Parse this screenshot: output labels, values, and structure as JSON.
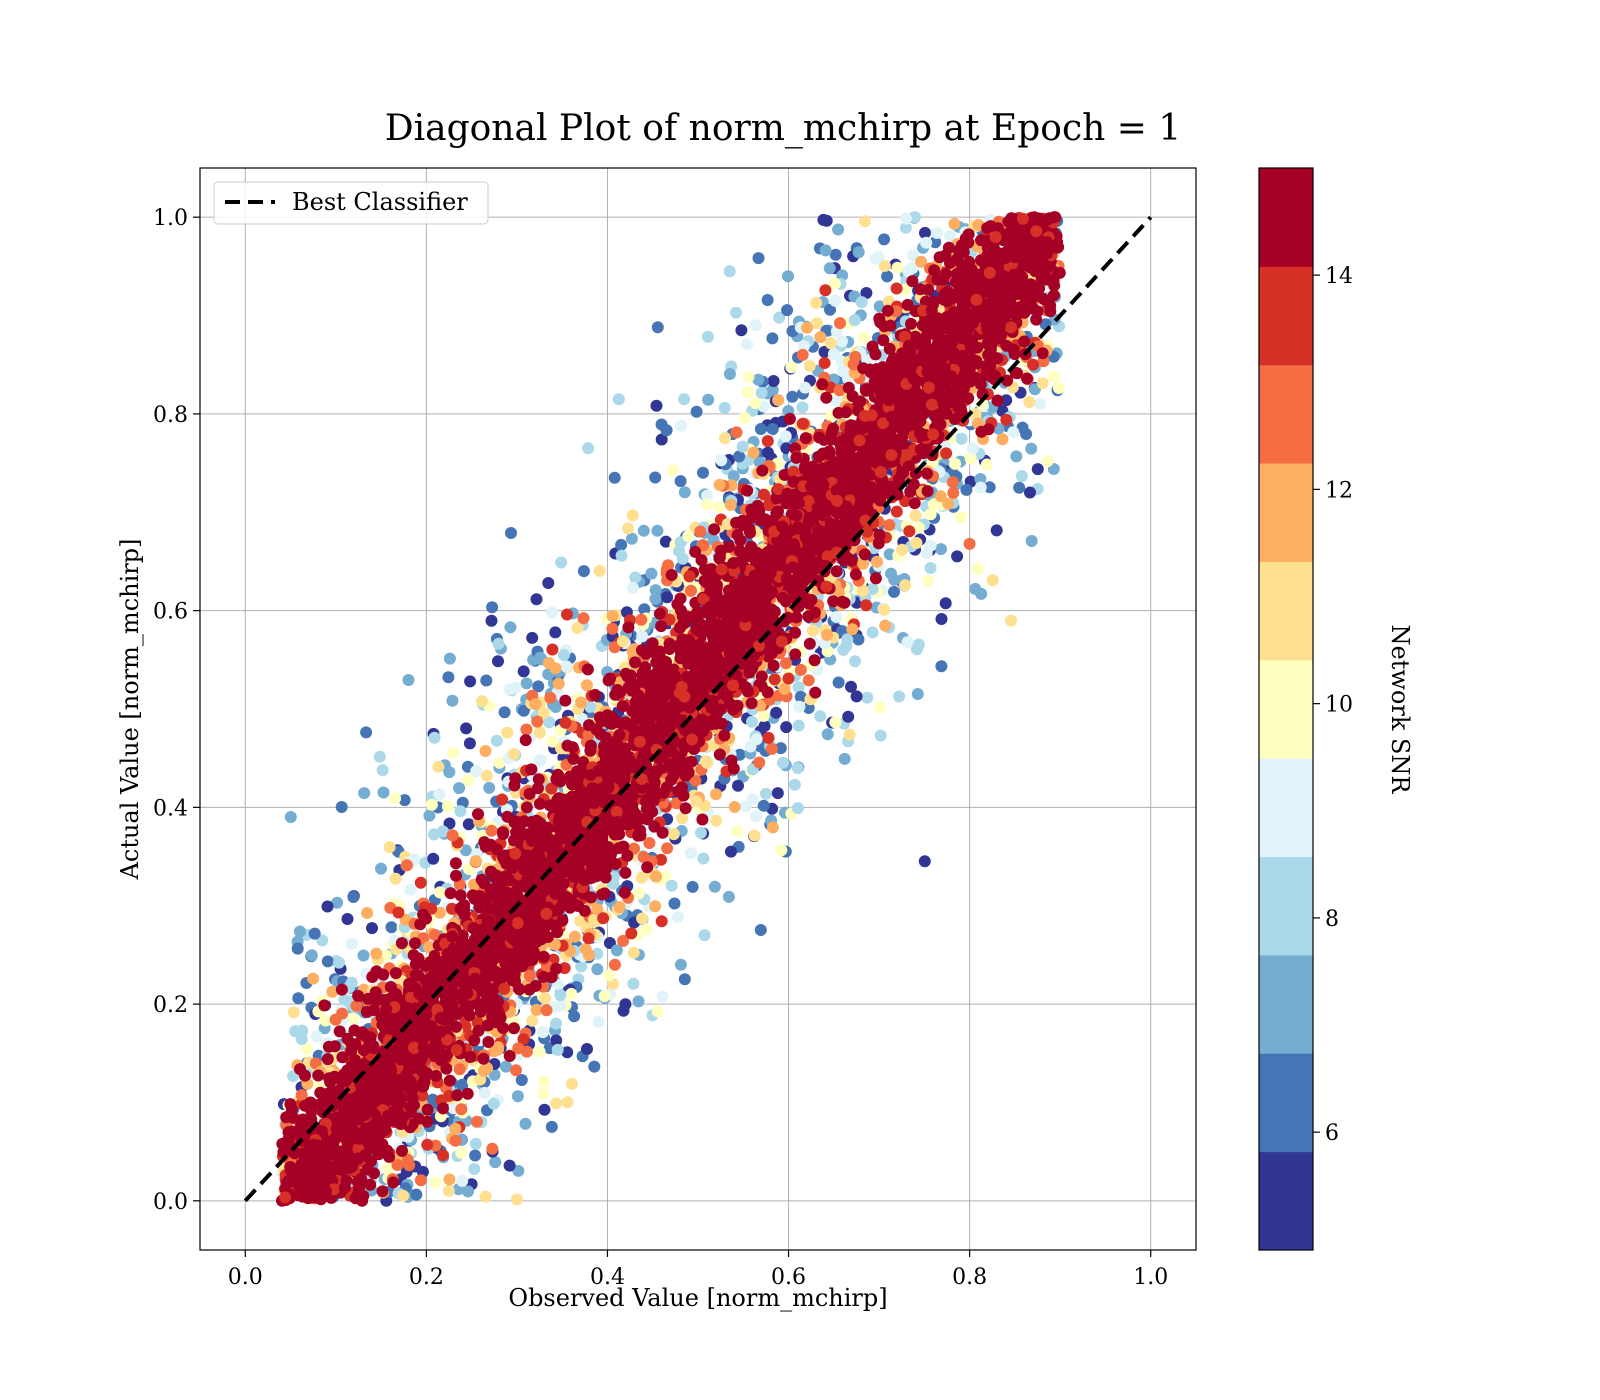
{
  "chart_data": {
    "type": "scatter",
    "title": "Diagonal Plot of norm_mchirp at Epoch = 1",
    "xlabel": "Observed Value [norm_mchirp]",
    "ylabel": "Actual Value [norm_mchirp]",
    "xlim": [
      -0.05,
      1.05
    ],
    "ylim": [
      -0.05,
      1.05
    ],
    "xticks": [
      "0.0",
      "0.2",
      "0.4",
      "0.6",
      "0.8",
      "1.0"
    ],
    "yticks": [
      "0.0",
      "0.2",
      "0.4",
      "0.6",
      "0.8",
      "1.0"
    ],
    "grid": true,
    "legend": {
      "placement": "top-left",
      "entries": [
        {
          "label": "Best Classifier",
          "style": "dashed",
          "color": "#000000"
        }
      ]
    },
    "reference_line": {
      "label": "Best Classifier",
      "x": [
        0.0,
        1.0
      ],
      "y": [
        0.0,
        1.0
      ]
    },
    "colorbar": {
      "label": "Network SNR",
      "range": [
        4.9,
        15.0
      ],
      "ticks": [
        "6",
        "8",
        "10",
        "12",
        "14"
      ],
      "tick_values": [
        6,
        8,
        10,
        12,
        14
      ],
      "colors": [
        "#313695",
        "#4575b4",
        "#74add1",
        "#abd9e9",
        "#e0f3f8",
        "#ffffbf",
        "#fee090",
        "#fdae61",
        "#f46d43",
        "#d73027",
        "#a50026"
      ]
    },
    "scatter_description_bands": [
      {
        "snr_bin": "high (>=14)",
        "color": "#a50026",
        "spread": "narrow band around y = x"
      },
      {
        "snr_bin": "mid",
        "color": "#fdae61",
        "spread": "wider band around y = x"
      },
      {
        "snr_bin": "low (<8)",
        "color": "#313695",
        "spread": "widest scatter, extends to edges"
      }
    ]
  }
}
